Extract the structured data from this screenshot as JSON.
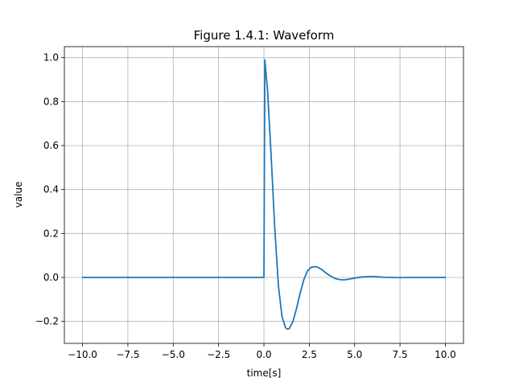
{
  "chart_data": {
    "type": "line",
    "title": "Figure 1.4.1: Waveform",
    "xlabel": "time[s]",
    "ylabel": "value",
    "xlim": [
      -11,
      11
    ],
    "ylim": [
      -0.3,
      1.05
    ],
    "xticks": [
      -10,
      -7.5,
      -5,
      -2.5,
      0,
      2.5,
      5,
      7.5,
      10
    ],
    "xtick_labels": [
      "−10.0",
      "−7.5",
      "−5.0",
      "−2.5",
      "0.0",
      "2.5",
      "5.0",
      "7.5",
      "10.0"
    ],
    "yticks": [
      -0.2,
      0,
      0.2,
      0.4,
      0.6,
      0.8,
      1.0
    ],
    "ytick_labels": [
      "−0.2",
      "0.0",
      "0.2",
      "0.4",
      "0.6",
      "0.8",
      "1.0"
    ],
    "grid": true,
    "series": [
      {
        "color": "#1f77b4",
        "x": [
          -10,
          -0.01,
          0,
          0.05,
          0.2,
          0.4,
          0.6,
          0.8,
          1.0,
          1.2,
          1.3,
          1.4,
          1.6,
          1.8,
          2.0,
          2.2,
          2.4,
          2.6,
          2.8,
          2.9,
          3.0,
          3.2,
          3.4,
          3.6,
          3.8,
          4.0,
          4.2,
          4.4,
          4.6,
          4.8,
          5.0,
          5.4,
          5.8,
          6.0,
          6.2,
          6.6,
          7.0,
          7.5,
          8.0,
          9.0,
          10.0
        ],
        "y": [
          0,
          0,
          0,
          0.99,
          0.85,
          0.55,
          0.22,
          -0.04,
          -0.18,
          -0.23,
          -0.235,
          -0.232,
          -0.2,
          -0.14,
          -0.07,
          -0.01,
          0.03,
          0.046,
          0.049,
          0.048,
          0.045,
          0.035,
          0.022,
          0.01,
          0.0,
          -0.007,
          -0.01,
          -0.011,
          -0.009,
          -0.006,
          -0.003,
          0.002,
          0.004,
          0.004,
          0.003,
          0.001,
          0.0,
          -0.001,
          0,
          0,
          0
        ]
      }
    ]
  }
}
